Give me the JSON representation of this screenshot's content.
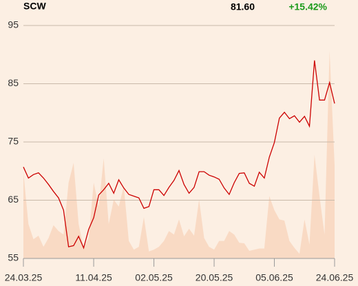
{
  "chart_data": {
    "type": "line",
    "title": "SCW",
    "price": "81.60",
    "change": "+15.42%",
    "categories": [
      "24.03.25",
      null,
      null,
      null,
      null,
      null,
      null,
      null,
      null,
      null,
      null,
      null,
      null,
      null,
      "11.04.25",
      null,
      null,
      null,
      null,
      null,
      null,
      null,
      null,
      null,
      null,
      null,
      "02.05.25",
      null,
      null,
      null,
      null,
      null,
      null,
      null,
      null,
      null,
      null,
      null,
      "20.05.25",
      null,
      null,
      null,
      null,
      null,
      null,
      null,
      null,
      null,
      null,
      null,
      "05.06.25",
      null,
      null,
      null,
      null,
      null,
      null,
      null,
      null,
      null,
      null,
      null,
      "24.06.25"
    ],
    "series": [
      {
        "color": "#f9dac4",
        "fill": true,
        "values": [
          69.8,
          60.9,
          58.3,
          58.9,
          57.0,
          58.5,
          60.7,
          59.7,
          59.1,
          68.0,
          71.4,
          60.9,
          56.8,
          58.5,
          68.0,
          63.9,
          72.2,
          60.9,
          65.1,
          63.9,
          67.4,
          58.0,
          56.5,
          57.0,
          62.1,
          56.2,
          56.5,
          57.0,
          58.0,
          59.7,
          59.1,
          61.7,
          58.8,
          60.1,
          58.9,
          65.1,
          58.5,
          57.0,
          56.5,
          58.0,
          58.0,
          59.7,
          59.1,
          57.7,
          57.6,
          56.3,
          56.5,
          56.7,
          56.7,
          65.7,
          63.3,
          61.7,
          61.5,
          58.0,
          56.8,
          55.8,
          61.7,
          57.4,
          72.8,
          65.7,
          59.1,
          90.7,
          71.0
        ]
      },
      {
        "color": "#cc0000",
        "fill": false,
        "values": [
          70.7,
          68.8,
          69.4,
          69.7,
          68.8,
          67.7,
          66.5,
          65.4,
          63.3,
          57.0,
          57.2,
          58.8,
          56.8,
          60.0,
          62.0,
          65.9,
          66.8,
          67.9,
          66.2,
          68.5,
          67.1,
          66.0,
          65.7,
          65.4,
          63.6,
          63.9,
          66.8,
          66.8,
          65.8,
          67.2,
          68.4,
          70.1,
          67.7,
          66.2,
          67.2,
          69.9,
          69.9,
          69.3,
          69.0,
          68.6,
          67.1,
          66.0,
          68.0,
          69.6,
          69.7,
          67.9,
          67.4,
          69.8,
          68.8,
          72.4,
          74.9,
          79.1,
          80.1,
          79.0,
          79.5,
          78.4,
          79.4,
          77.7,
          89.0,
          82.2,
          82.2,
          85.2,
          81.6
        ]
      }
    ],
    "ylim": [
      55,
      95
    ],
    "yticks": [
      55,
      65,
      75,
      85,
      95
    ],
    "grid": true
  }
}
